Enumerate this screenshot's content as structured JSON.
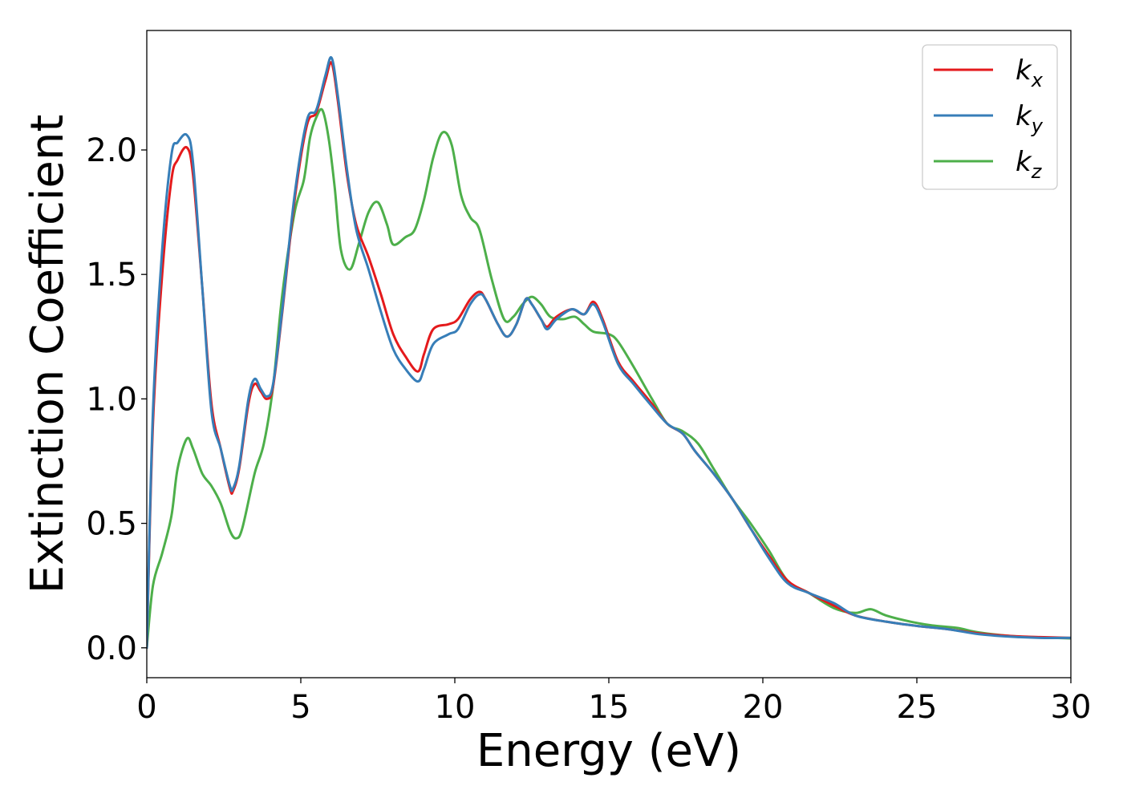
{
  "chart_data": {
    "type": "line",
    "xlabel": "Energy (eV)",
    "ylabel": "Extinction Coefficient",
    "xlim": [
      0,
      30
    ],
    "ylim": [
      -0.12,
      2.48
    ],
    "xticks": [
      0,
      5,
      10,
      15,
      20,
      25,
      30
    ],
    "yticks": [
      0.0,
      0.5,
      1.0,
      1.5,
      2.0
    ],
    "xtick_labels": [
      "0",
      "5",
      "10",
      "15",
      "20",
      "25",
      "30"
    ],
    "ytick_labels": [
      "0.0",
      "0.5",
      "1.0",
      "1.5",
      "2.0"
    ],
    "grid": false,
    "legend_position": "top-right",
    "series": [
      {
        "name": "k_x",
        "legend_base": "k",
        "legend_sub": "x",
        "color": "#e41a1c",
        "points": [
          [
            0,
            0
          ],
          [
            0.2,
            0.9
          ],
          [
            0.5,
            1.5
          ],
          [
            0.8,
            1.88
          ],
          [
            1.0,
            1.96
          ],
          [
            1.3,
            2.01
          ],
          [
            1.5,
            1.9
          ],
          [
            1.8,
            1.45
          ],
          [
            2.1,
            0.98
          ],
          [
            2.4,
            0.8
          ],
          [
            2.7,
            0.64
          ],
          [
            2.8,
            0.63
          ],
          [
            3.0,
            0.72
          ],
          [
            3.3,
            0.98
          ],
          [
            3.5,
            1.06
          ],
          [
            3.7,
            1.03
          ],
          [
            3.9,
            1.0
          ],
          [
            4.1,
            1.05
          ],
          [
            4.4,
            1.35
          ],
          [
            4.8,
            1.8
          ],
          [
            5.2,
            2.1
          ],
          [
            5.5,
            2.15
          ],
          [
            5.8,
            2.28
          ],
          [
            6.0,
            2.35
          ],
          [
            6.2,
            2.2
          ],
          [
            6.5,
            1.9
          ],
          [
            6.8,
            1.7
          ],
          [
            7.2,
            1.57
          ],
          [
            7.6,
            1.42
          ],
          [
            8.0,
            1.26
          ],
          [
            8.4,
            1.17
          ],
          [
            8.8,
            1.11
          ],
          [
            9.0,
            1.18
          ],
          [
            9.3,
            1.28
          ],
          [
            9.8,
            1.3
          ],
          [
            10.1,
            1.32
          ],
          [
            10.5,
            1.4
          ],
          [
            10.8,
            1.43
          ],
          [
            11.0,
            1.4
          ],
          [
            11.4,
            1.3
          ],
          [
            11.7,
            1.25
          ],
          [
            12.0,
            1.3
          ],
          [
            12.3,
            1.4
          ],
          [
            12.5,
            1.38
          ],
          [
            12.8,
            1.32
          ],
          [
            13.0,
            1.29
          ],
          [
            13.3,
            1.33
          ],
          [
            13.8,
            1.36
          ],
          [
            14.2,
            1.34
          ],
          [
            14.5,
            1.39
          ],
          [
            14.8,
            1.32
          ],
          [
            15.3,
            1.15
          ],
          [
            15.8,
            1.07
          ],
          [
            16.4,
            0.98
          ],
          [
            16.9,
            0.9
          ],
          [
            17.4,
            0.86
          ],
          [
            17.8,
            0.79
          ],
          [
            18.4,
            0.7
          ],
          [
            19.0,
            0.6
          ],
          [
            19.6,
            0.48
          ],
          [
            20.2,
            0.37
          ],
          [
            20.8,
            0.27
          ],
          [
            21.5,
            0.22
          ],
          [
            22.3,
            0.17
          ],
          [
            23.0,
            0.13
          ],
          [
            24.0,
            0.105
          ],
          [
            25.0,
            0.088
          ],
          [
            26.0,
            0.075
          ],
          [
            27.0,
            0.058
          ],
          [
            28.0,
            0.048
          ],
          [
            29.0,
            0.043
          ],
          [
            30.0,
            0.04
          ]
        ]
      },
      {
        "name": "k_y",
        "legend_base": "k",
        "legend_sub": "y",
        "color": "#377eb8",
        "points": [
          [
            0,
            0
          ],
          [
            0.2,
            0.95
          ],
          [
            0.5,
            1.6
          ],
          [
            0.8,
            1.98
          ],
          [
            1.0,
            2.03
          ],
          [
            1.3,
            2.06
          ],
          [
            1.5,
            1.95
          ],
          [
            1.8,
            1.45
          ],
          [
            2.1,
            0.95
          ],
          [
            2.4,
            0.8
          ],
          [
            2.7,
            0.65
          ],
          [
            2.8,
            0.64
          ],
          [
            3.0,
            0.73
          ],
          [
            3.3,
            1.0
          ],
          [
            3.5,
            1.08
          ],
          [
            3.7,
            1.04
          ],
          [
            3.9,
            1.01
          ],
          [
            4.1,
            1.06
          ],
          [
            4.4,
            1.36
          ],
          [
            4.8,
            1.82
          ],
          [
            5.2,
            2.12
          ],
          [
            5.5,
            2.16
          ],
          [
            5.8,
            2.3
          ],
          [
            6.0,
            2.37
          ],
          [
            6.2,
            2.22
          ],
          [
            6.5,
            1.92
          ],
          [
            6.8,
            1.68
          ],
          [
            7.2,
            1.52
          ],
          [
            7.6,
            1.35
          ],
          [
            8.0,
            1.2
          ],
          [
            8.4,
            1.12
          ],
          [
            8.8,
            1.07
          ],
          [
            9.0,
            1.12
          ],
          [
            9.3,
            1.22
          ],
          [
            9.8,
            1.26
          ],
          [
            10.1,
            1.28
          ],
          [
            10.5,
            1.38
          ],
          [
            10.8,
            1.42
          ],
          [
            11.0,
            1.4
          ],
          [
            11.4,
            1.3
          ],
          [
            11.7,
            1.25
          ],
          [
            12.0,
            1.3
          ],
          [
            12.3,
            1.4
          ],
          [
            12.5,
            1.38
          ],
          [
            12.8,
            1.32
          ],
          [
            13.0,
            1.28
          ],
          [
            13.3,
            1.32
          ],
          [
            13.8,
            1.36
          ],
          [
            14.2,
            1.34
          ],
          [
            14.5,
            1.38
          ],
          [
            14.8,
            1.31
          ],
          [
            15.3,
            1.14
          ],
          [
            15.8,
            1.06
          ],
          [
            16.4,
            0.97
          ],
          [
            16.9,
            0.9
          ],
          [
            17.4,
            0.86
          ],
          [
            17.8,
            0.79
          ],
          [
            18.4,
            0.7
          ],
          [
            19.0,
            0.6
          ],
          [
            19.6,
            0.48
          ],
          [
            20.2,
            0.36
          ],
          [
            20.8,
            0.26
          ],
          [
            21.5,
            0.22
          ],
          [
            22.3,
            0.18
          ],
          [
            23.0,
            0.13
          ],
          [
            24.0,
            0.105
          ],
          [
            25.0,
            0.088
          ],
          [
            26.0,
            0.075
          ],
          [
            27.0,
            0.055
          ],
          [
            28.0,
            0.045
          ],
          [
            29.0,
            0.04
          ],
          [
            30.0,
            0.04
          ]
        ]
      },
      {
        "name": "k_z",
        "legend_base": "k",
        "legend_sub": "z",
        "color": "#4daf4a",
        "points": [
          [
            0,
            0
          ],
          [
            0.2,
            0.25
          ],
          [
            0.5,
            0.38
          ],
          [
            0.8,
            0.53
          ],
          [
            1.0,
            0.72
          ],
          [
            1.3,
            0.84
          ],
          [
            1.5,
            0.8
          ],
          [
            1.8,
            0.7
          ],
          [
            2.1,
            0.65
          ],
          [
            2.4,
            0.58
          ],
          [
            2.7,
            0.47
          ],
          [
            2.9,
            0.44
          ],
          [
            3.1,
            0.48
          ],
          [
            3.5,
            0.7
          ],
          [
            3.8,
            0.82
          ],
          [
            4.1,
            1.05
          ],
          [
            4.4,
            1.42
          ],
          [
            4.8,
            1.75
          ],
          [
            5.1,
            1.88
          ],
          [
            5.3,
            2.05
          ],
          [
            5.5,
            2.13
          ],
          [
            5.7,
            2.16
          ],
          [
            5.9,
            2.05
          ],
          [
            6.1,
            1.85
          ],
          [
            6.3,
            1.6
          ],
          [
            6.6,
            1.52
          ],
          [
            6.9,
            1.63
          ],
          [
            7.2,
            1.75
          ],
          [
            7.5,
            1.79
          ],
          [
            7.8,
            1.7
          ],
          [
            8.0,
            1.62
          ],
          [
            8.4,
            1.65
          ],
          [
            8.7,
            1.68
          ],
          [
            9.0,
            1.8
          ],
          [
            9.3,
            1.97
          ],
          [
            9.6,
            2.07
          ],
          [
            9.9,
            2.02
          ],
          [
            10.2,
            1.82
          ],
          [
            10.5,
            1.73
          ],
          [
            10.8,
            1.68
          ],
          [
            11.2,
            1.48
          ],
          [
            11.6,
            1.32
          ],
          [
            11.9,
            1.33
          ],
          [
            12.2,
            1.38
          ],
          [
            12.5,
            1.41
          ],
          [
            12.8,
            1.38
          ],
          [
            13.1,
            1.33
          ],
          [
            13.5,
            1.32
          ],
          [
            13.9,
            1.33
          ],
          [
            14.2,
            1.3
          ],
          [
            14.5,
            1.27
          ],
          [
            15.0,
            1.26
          ],
          [
            15.3,
            1.23
          ],
          [
            15.8,
            1.13
          ],
          [
            16.4,
            1.0
          ],
          [
            16.9,
            0.9
          ],
          [
            17.4,
            0.87
          ],
          [
            17.9,
            0.82
          ],
          [
            18.4,
            0.72
          ],
          [
            19.0,
            0.6
          ],
          [
            19.6,
            0.5
          ],
          [
            20.2,
            0.39
          ],
          [
            20.8,
            0.27
          ],
          [
            21.5,
            0.22
          ],
          [
            22.3,
            0.16
          ],
          [
            23.0,
            0.14
          ],
          [
            23.5,
            0.155
          ],
          [
            24.0,
            0.13
          ],
          [
            24.8,
            0.105
          ],
          [
            25.5,
            0.09
          ],
          [
            26.3,
            0.08
          ],
          [
            27.0,
            0.062
          ],
          [
            28.0,
            0.048
          ],
          [
            29.0,
            0.042
          ],
          [
            30.0,
            0.038
          ]
        ]
      }
    ]
  }
}
